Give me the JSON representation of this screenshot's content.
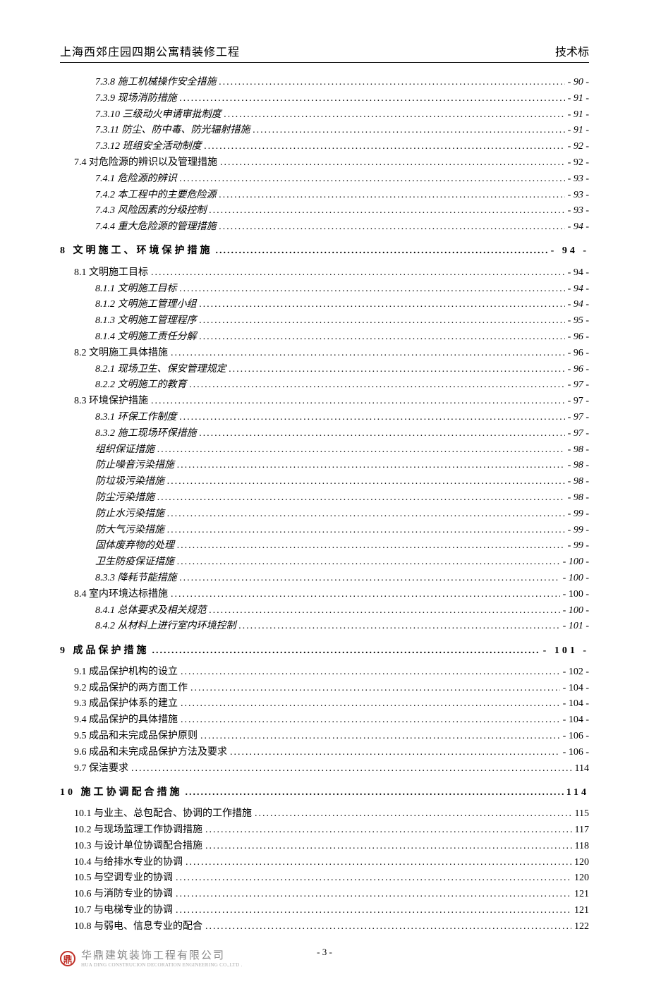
{
  "header": {
    "left": "上海西郊庄园四期公寓精装修工程",
    "right": "技术标"
  },
  "toc": [
    {
      "level": 2,
      "num": "7.3.8",
      "title": "施工机械操作安全措施",
      "page": "- 90 -"
    },
    {
      "level": 2,
      "num": "7.3.9",
      "title": "现场消防措施",
      "page": "- 91 -"
    },
    {
      "level": 2,
      "num": "7.3.10",
      "title": "三级动火申请审批制度",
      "page": "- 91 -"
    },
    {
      "level": 2,
      "num": "7.3.11",
      "title": "防尘、防中毒、防光辐射措施",
      "page": "- 91 -"
    },
    {
      "level": 2,
      "num": "7.3.12",
      "title": "班组安全活动制度",
      "page": "- 92 -"
    },
    {
      "level": 1,
      "num": "7.4",
      "title": "对危险源的辨识以及管理措施",
      "page": "- 92 -"
    },
    {
      "level": 2,
      "num": "7.4.1",
      "title": "危险源的辨识",
      "page": "- 93 -"
    },
    {
      "level": 2,
      "num": "7.4.2",
      "title": "本工程中的主要危险源",
      "page": "- 93 -"
    },
    {
      "level": 2,
      "num": "7.4.3",
      "title": "风险因素的分级控制",
      "page": "- 93 -"
    },
    {
      "level": 2,
      "num": "7.4.4",
      "title": "重大危险源的管理措施",
      "page": "- 94 -"
    },
    {
      "level": 0,
      "num": "8",
      "title": "文明施工、环境保护措施",
      "page": "- 94 -"
    },
    {
      "level": 1,
      "num": "8.1",
      "title": "文明施工目标",
      "page": "- 94 -"
    },
    {
      "level": 2,
      "num": "8.1.1",
      "title": "文明施工目标",
      "page": "- 94 -"
    },
    {
      "level": 2,
      "num": "8.1.2",
      "title": "文明施工管理小组",
      "page": "- 94 -"
    },
    {
      "level": 2,
      "num": "8.1.3",
      "title": "文明施工管理程序",
      "page": "- 95 -"
    },
    {
      "level": 2,
      "num": "8.1.4",
      "title": "文明施工责任分解",
      "page": "- 96 -"
    },
    {
      "level": 1,
      "num": "8.2",
      "title": "文明施工具体措施",
      "page": "- 96 -"
    },
    {
      "level": 2,
      "num": "8.2.1",
      "title": "现场卫生、保安管理规定",
      "page": "- 96 -"
    },
    {
      "level": 2,
      "num": "8.2.2",
      "title": "文明施工的教育",
      "page": "- 97 -"
    },
    {
      "level": 1,
      "num": "8.3",
      "title": "环境保护措施",
      "page": "- 97 -"
    },
    {
      "level": 2,
      "num": "8.3.1",
      "title": "环保工作制度",
      "page": "- 97 -"
    },
    {
      "level": 2,
      "num": "8.3.2",
      "title": "施工现场环保措施",
      "page": "- 97 -"
    },
    {
      "level": 2,
      "num": "",
      "title": "组织保证措施",
      "page": "- 98 -"
    },
    {
      "level": 2,
      "num": "",
      "title": "防止噪音污染措施",
      "page": "- 98 -"
    },
    {
      "level": 2,
      "num": "",
      "title": "防垃圾污染措施",
      "page": "- 98 -"
    },
    {
      "level": 2,
      "num": "",
      "title": "防尘污染措施",
      "page": "- 98 -"
    },
    {
      "level": 2,
      "num": "",
      "title": "防止水污染措施",
      "page": "- 99 -"
    },
    {
      "level": 2,
      "num": "",
      "title": "防大气污染措施",
      "page": "- 99 -"
    },
    {
      "level": 2,
      "num": "",
      "title": "固体废弃物的处理",
      "page": "- 99 -"
    },
    {
      "level": 2,
      "num": "",
      "title": "卫生防疫保证措施",
      "page": "- 100 -"
    },
    {
      "level": 2,
      "num": "8.3.3",
      "title": "降耗节能措施",
      "page": "- 100 -"
    },
    {
      "level": 1,
      "num": "8.4",
      "title": "室内环境达标措施",
      "page": "- 100 -"
    },
    {
      "level": 2,
      "num": "8.4.1",
      "title": "总体要求及相关规范",
      "page": "- 100 -"
    },
    {
      "level": 2,
      "num": "8.4.2",
      "title": "从材料上进行室内环境控制",
      "page": "- 101 -"
    },
    {
      "level": 0,
      "num": "9",
      "title": "成品保护措施",
      "page": "- 101 -"
    },
    {
      "level": 1,
      "num": "9.1",
      "title": "成品保护机构的设立",
      "page": "- 102 -"
    },
    {
      "level": 1,
      "num": "9.2",
      "title": "成品保护的两方面工作",
      "page": "- 104 -"
    },
    {
      "level": 1,
      "num": "9.3",
      "title": "成品保护体系的建立",
      "page": "- 104 -"
    },
    {
      "level": 1,
      "num": "9.4",
      "title": "成品保护的具体措施",
      "page": "- 104 -"
    },
    {
      "level": 1,
      "num": "9.5",
      "title": "成品和未完成品保护原则",
      "page": "- 106 -"
    },
    {
      "level": 1,
      "num": "9.6",
      "title": "成品和未完成品保护方法及要求",
      "page": "- 106 -"
    },
    {
      "level": 1,
      "num": "9.7",
      "title": "保洁要求",
      "page": "114"
    },
    {
      "level": 0,
      "num": "10",
      "title": "施工协调配合措施",
      "page": "114"
    },
    {
      "level": 1,
      "num": "10.1",
      "title": "与业主、总包配合、协调的工作措施",
      "page": "115"
    },
    {
      "level": 1,
      "num": "10.2",
      "title": "与现场监理工作协调措施",
      "page": "117"
    },
    {
      "level": 1,
      "num": "10.3",
      "title": "与设计单位协调配合措施",
      "page": "118"
    },
    {
      "level": 1,
      "num": "10.4",
      "title": "与给排水专业的协调",
      "page": "120"
    },
    {
      "level": 1,
      "num": "10.5",
      "title": "与空调专业的协调",
      "page": "120"
    },
    {
      "level": 1,
      "num": "10.6",
      "title": "与消防专业的协调",
      "page": "121"
    },
    {
      "level": 1,
      "num": "10.7",
      "title": "与电梯专业的协调",
      "page": "121"
    },
    {
      "level": 1,
      "num": "10.8",
      "title": "与弱电、信息专业的配合",
      "page": "122"
    }
  ],
  "footer": {
    "logo_char": "鼎",
    "company_cn": "华鼎建筑装饰工程有限公司",
    "company_en": "HUA DING CONSTRUCION DECORATION ENGINEERING CO.,LTD .",
    "pagenum": "- 3 -"
  }
}
